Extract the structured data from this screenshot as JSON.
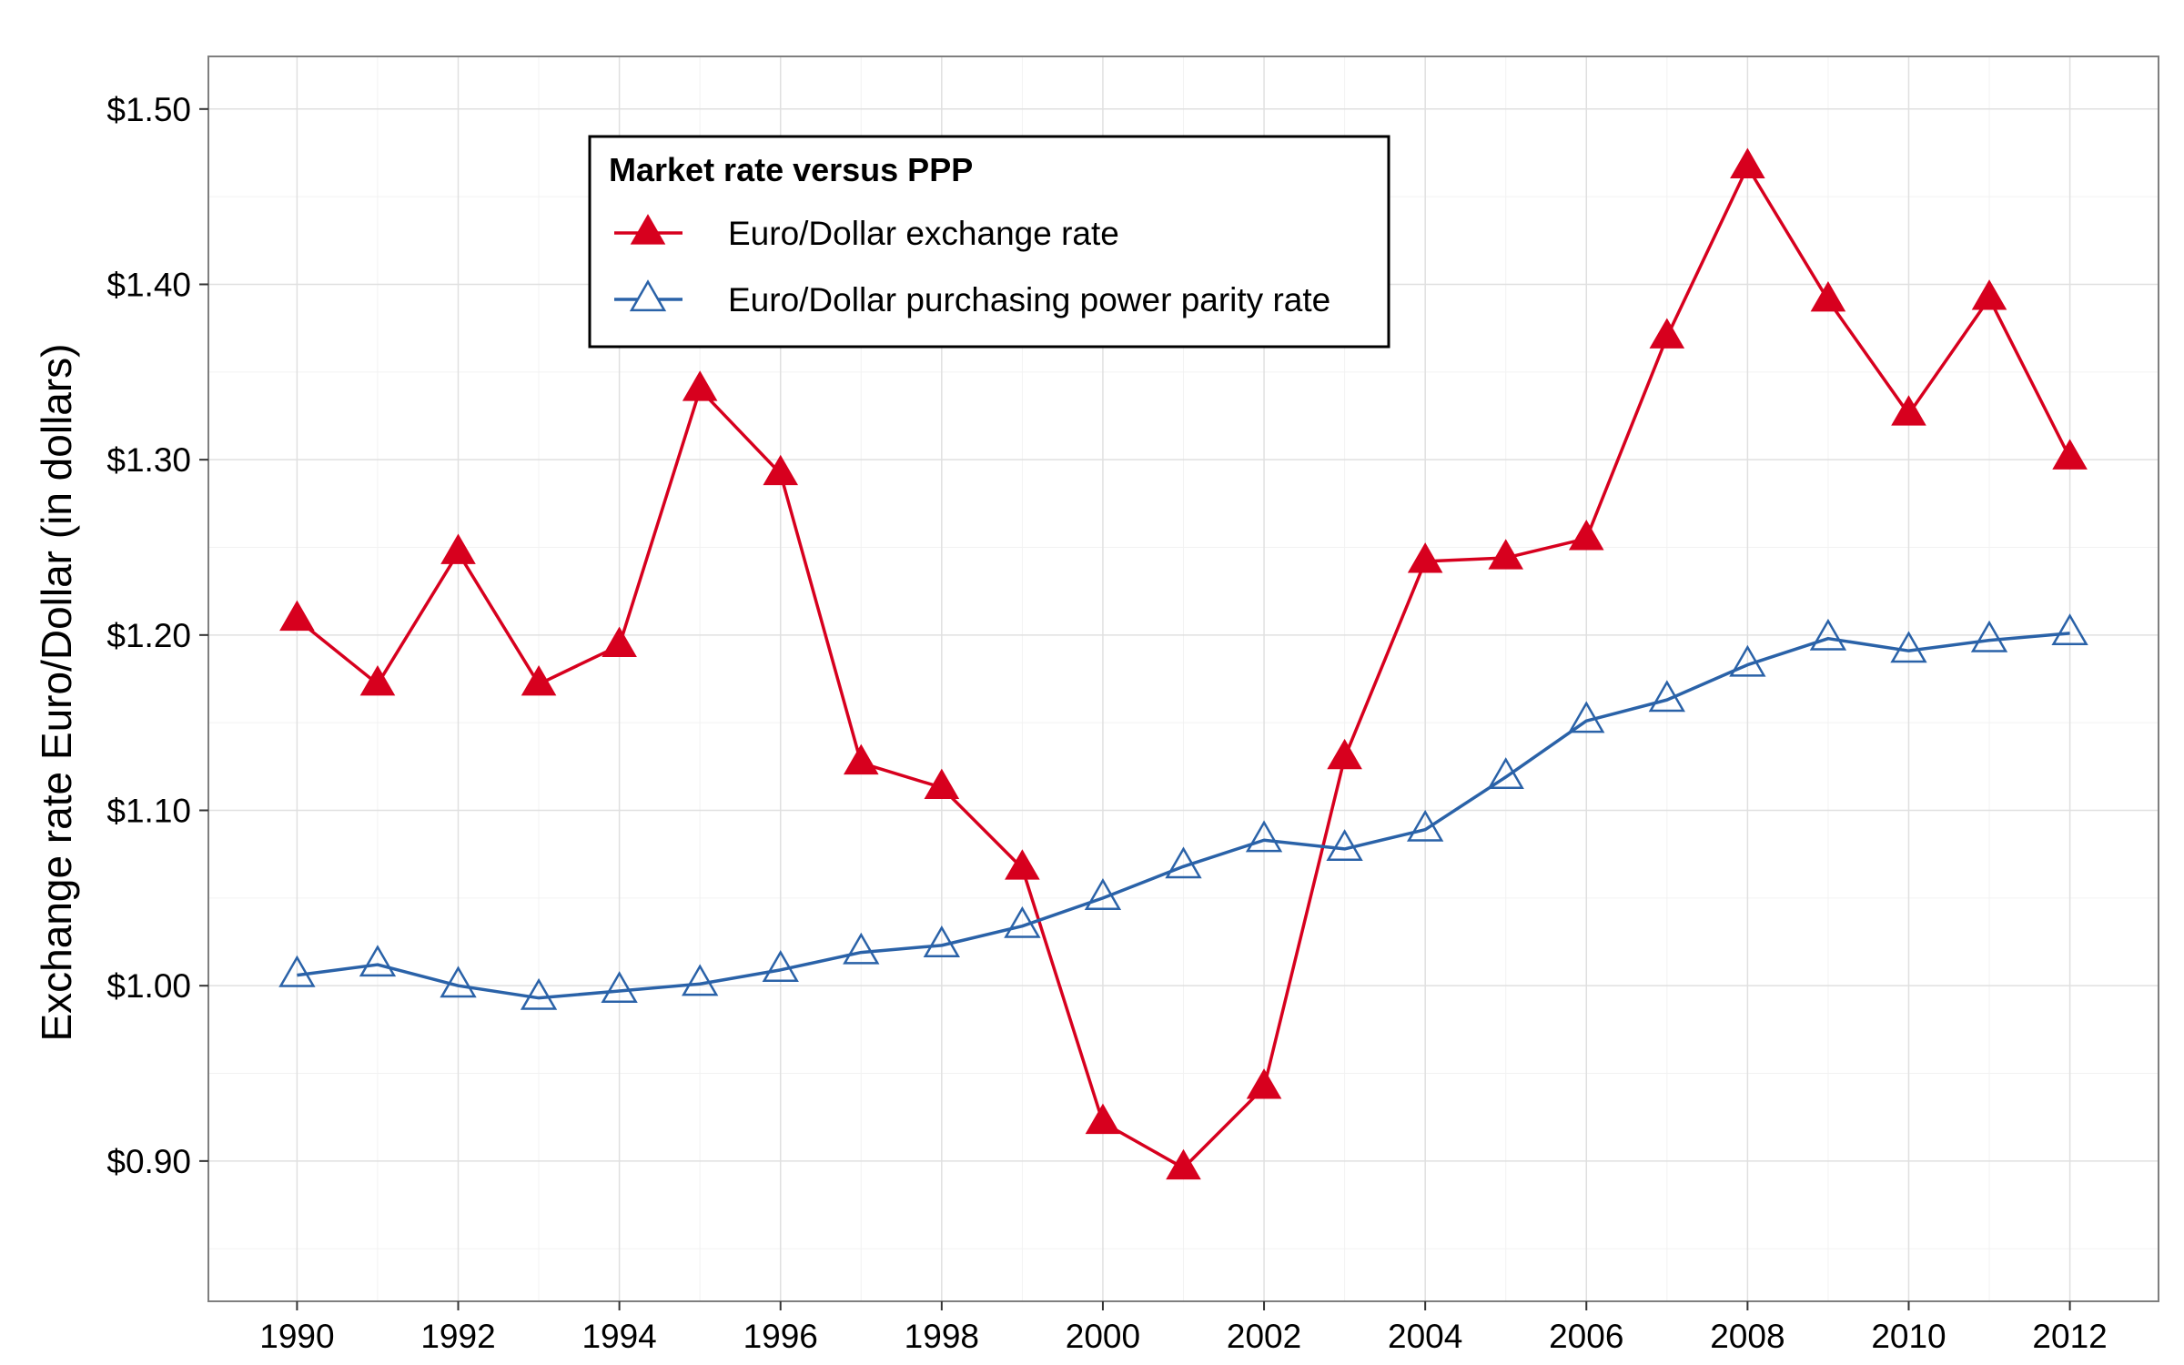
{
  "chart_data": {
    "type": "line",
    "title": "",
    "xlabel": "",
    "ylabel": "Exchange rate Euro/Dollar (in dollars)",
    "x": [
      1990,
      1991,
      1992,
      1993,
      1994,
      1995,
      1996,
      1997,
      1998,
      1999,
      2000,
      2001,
      2002,
      2003,
      2004,
      2005,
      2006,
      2007,
      2008,
      2009,
      2010,
      2011,
      2012
    ],
    "x_ticks": [
      1990,
      1992,
      1994,
      1996,
      1998,
      2000,
      2002,
      2004,
      2006,
      2008,
      2010,
      2012
    ],
    "x_tick_labels": [
      "1990",
      "1992",
      "1994",
      "1996",
      "1998",
      "2000",
      "2002",
      "2004",
      "2006",
      "2008",
      "2010",
      "2012"
    ],
    "y_ticks": [
      0.9,
      1.0,
      1.1,
      1.2,
      1.3,
      1.4,
      1.5
    ],
    "y_tick_labels": [
      "$0.90",
      "$1.00",
      "$1.10",
      "$1.20",
      "$1.30",
      "$1.40",
      "$1.50"
    ],
    "xlim": [
      1988.9,
      2013.1
    ],
    "ylim": [
      0.82,
      1.53
    ],
    "grid": true,
    "legend": {
      "title": "Market rate versus PPP",
      "position": "top-left"
    },
    "series": [
      {
        "name": "Euro/Dollar exchange rate",
        "color": "#d7001e",
        "marker": "filled-triangle",
        "values": [
          1.209,
          1.172,
          1.247,
          1.172,
          1.194,
          1.34,
          1.292,
          1.127,
          1.113,
          1.067,
          0.922,
          0.896,
          0.942,
          1.13,
          1.242,
          1.244,
          1.255,
          1.37,
          1.467,
          1.391,
          1.326,
          1.392,
          1.301
        ]
      },
      {
        "name": "Euro/Dollar purchasing power parity rate",
        "color": "#2a62a8",
        "marker": "open-triangle",
        "values": [
          1.006,
          1.012,
          1.0,
          0.993,
          0.997,
          1.001,
          1.009,
          1.019,
          1.023,
          1.034,
          1.05,
          1.068,
          1.083,
          1.078,
          1.089,
          1.119,
          1.151,
          1.163,
          1.183,
          1.198,
          1.191,
          1.197,
          1.201
        ]
      }
    ]
  }
}
